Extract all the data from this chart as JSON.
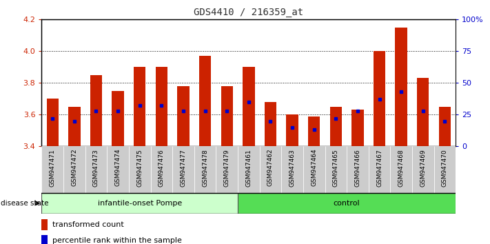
{
  "title": "GDS4410 / 216359_at",
  "samples": [
    "GSM947471",
    "GSM947472",
    "GSM947473",
    "GSM947474",
    "GSM947475",
    "GSM947476",
    "GSM947477",
    "GSM947478",
    "GSM947479",
    "GSM947461",
    "GSM947462",
    "GSM947463",
    "GSM947464",
    "GSM947465",
    "GSM947466",
    "GSM947467",
    "GSM947468",
    "GSM947469",
    "GSM947470"
  ],
  "transformed_counts": [
    3.7,
    3.65,
    3.85,
    3.75,
    3.9,
    3.9,
    3.78,
    3.97,
    3.78,
    3.9,
    3.68,
    3.6,
    3.59,
    3.65,
    3.63,
    4.0,
    4.15,
    3.83,
    3.65
  ],
  "percentile_ranks": [
    22,
    20,
    28,
    28,
    32,
    32,
    28,
    28,
    28,
    35,
    20,
    15,
    13,
    22,
    28,
    37,
    43,
    28,
    20
  ],
  "group_labels": [
    "infantile-onset Pompe",
    "control"
  ],
  "group_counts": [
    9,
    10
  ],
  "bar_color": "#cc2200",
  "marker_color": "#0000cc",
  "base_value": 3.4,
  "ymin": 3.4,
  "ymax": 4.2,
  "yticks": [
    3.4,
    3.6,
    3.8,
    4.0,
    4.2
  ],
  "right_yticks": [
    0,
    25,
    50,
    75,
    100
  ],
  "right_ytick_labels": [
    "0",
    "25",
    "50",
    "75",
    "100%"
  ],
  "grid_values": [
    3.6,
    3.8,
    4.0
  ],
  "group1_color": "#ccffcc",
  "group2_color": "#55dd55",
  "left_tick_color": "#cc2200",
  "right_tick_color": "#0000cc"
}
